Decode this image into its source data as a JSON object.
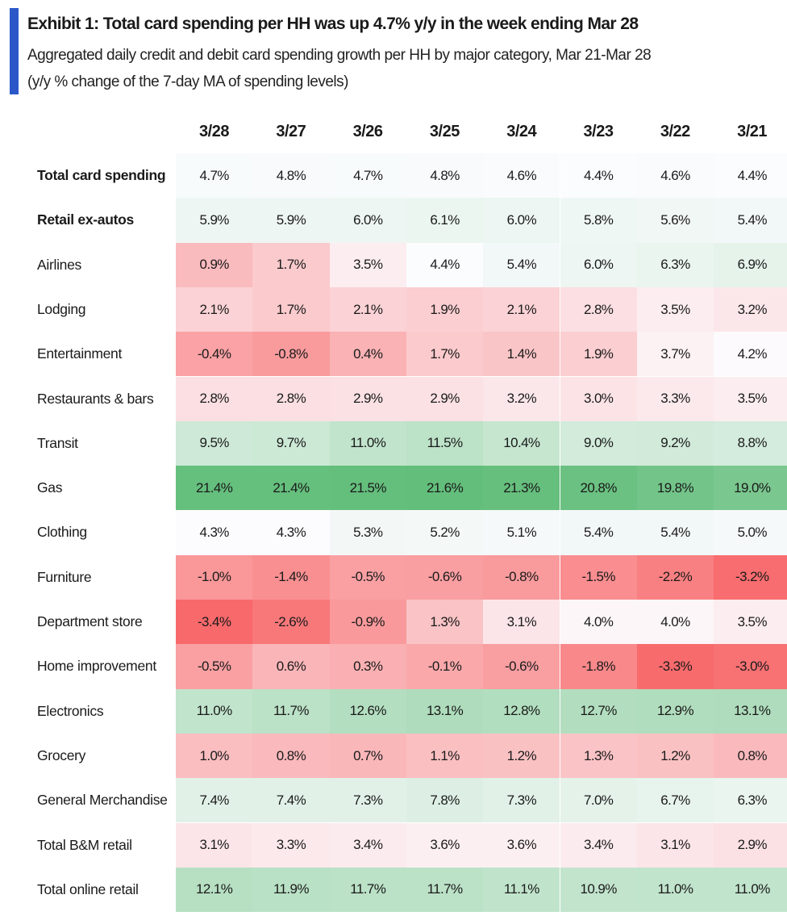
{
  "header": {
    "title": "Exhibit 1: Total card spending per HH was up 4.7% y/y in the week ending Mar 28",
    "subtitle_line1": "Aggregated daily credit and debit card spending growth per HH by major category, Mar 21-Mar 28",
    "subtitle_line2": "(y/y % change of the 7-day MA of spending levels)"
  },
  "colors": {
    "accent_bar": "#2b57c9",
    "low": "#F8696B",
    "mid": "#FCFCFF",
    "high": "#63BE7B"
  },
  "chart_data": {
    "type": "heatmap",
    "unit": "%",
    "columns": [
      "3/28",
      "3/27",
      "3/26",
      "3/25",
      "3/24",
      "3/23",
      "3/22",
      "3/21"
    ],
    "rows": [
      {
        "label": "Total card spending",
        "bold": true,
        "values": [
          4.7,
          4.8,
          4.7,
          4.8,
          4.6,
          4.4,
          4.6,
          4.4
        ]
      },
      {
        "label": "Retail ex-autos",
        "bold": true,
        "values": [
          5.9,
          5.9,
          6.0,
          6.1,
          6.0,
          5.8,
          5.6,
          5.4
        ]
      },
      {
        "label": "Airlines",
        "values": [
          0.9,
          1.7,
          3.5,
          4.4,
          5.4,
          6.0,
          6.3,
          6.9
        ]
      },
      {
        "label": "Lodging",
        "values": [
          2.1,
          1.7,
          2.1,
          1.9,
          2.1,
          2.8,
          3.5,
          3.2
        ]
      },
      {
        "label": "Entertainment",
        "values": [
          -0.4,
          -0.8,
          0.4,
          1.7,
          1.4,
          1.9,
          3.7,
          4.2
        ]
      },
      {
        "label": "Restaurants & bars",
        "values": [
          2.8,
          2.8,
          2.9,
          2.9,
          3.2,
          3.0,
          3.3,
          3.5
        ]
      },
      {
        "label": "Transit",
        "values": [
          9.5,
          9.7,
          11.0,
          11.5,
          10.4,
          9.0,
          9.2,
          8.8
        ]
      },
      {
        "label": "Gas",
        "values": [
          21.4,
          21.4,
          21.5,
          21.6,
          21.3,
          20.8,
          19.8,
          19.0
        ]
      },
      {
        "label": "Clothing",
        "values": [
          4.3,
          4.3,
          5.3,
          5.2,
          5.1,
          5.4,
          5.4,
          5.0
        ]
      },
      {
        "label": "Furniture",
        "values": [
          -1.0,
          -1.4,
          -0.5,
          -0.6,
          -0.8,
          -1.5,
          -2.2,
          -3.2
        ]
      },
      {
        "label": "Department store",
        "values": [
          -3.4,
          -2.6,
          -0.9,
          1.3,
          3.1,
          4.0,
          4.0,
          3.5
        ]
      },
      {
        "label": "Home improvement",
        "values": [
          -0.5,
          0.6,
          0.3,
          -0.1,
          -0.6,
          -1.8,
          -3.3,
          -3.0
        ]
      },
      {
        "label": "Electronics",
        "values": [
          11.0,
          11.7,
          12.6,
          13.1,
          12.8,
          12.7,
          12.9,
          13.1
        ]
      },
      {
        "label": "Grocery",
        "values": [
          1.0,
          0.8,
          0.7,
          1.1,
          1.2,
          1.3,
          1.2,
          0.8
        ]
      },
      {
        "label": "General Merchandise",
        "values": [
          7.4,
          7.4,
          7.3,
          7.8,
          7.3,
          7.0,
          6.7,
          6.3
        ]
      },
      {
        "label": "Total B&M retail",
        "values": [
          3.1,
          3.3,
          3.4,
          3.6,
          3.6,
          3.4,
          3.1,
          2.9
        ]
      },
      {
        "label": "Total online retail",
        "values": [
          12.1,
          11.9,
          11.7,
          11.7,
          11.1,
          10.9,
          11.0,
          11.0
        ]
      }
    ]
  }
}
